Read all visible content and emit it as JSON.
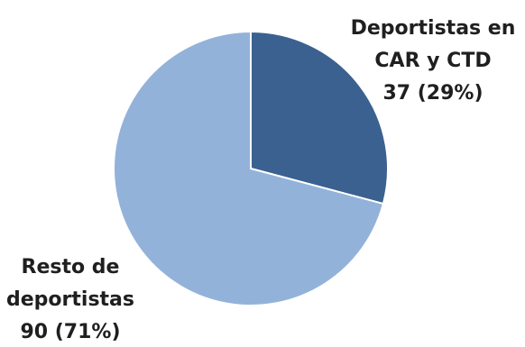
{
  "chart_data": {
    "type": "pie",
    "title": "",
    "slices": [
      {
        "label_lines": [
          "Deportistas en",
          "CAR y CTD"
        ],
        "value": 37,
        "value_text": "37 (29%)",
        "percent": 29,
        "color": "#3a6190"
      },
      {
        "label_lines": [
          "Resto de",
          "deportistas"
        ],
        "value": 90,
        "value_text": "90 (71%)",
        "percent": 71,
        "color": "#93b2da"
      }
    ],
    "start_angle_deg": 0,
    "direction": "clockwise",
    "slice_border_color": "#ffffff",
    "legend": "none"
  }
}
